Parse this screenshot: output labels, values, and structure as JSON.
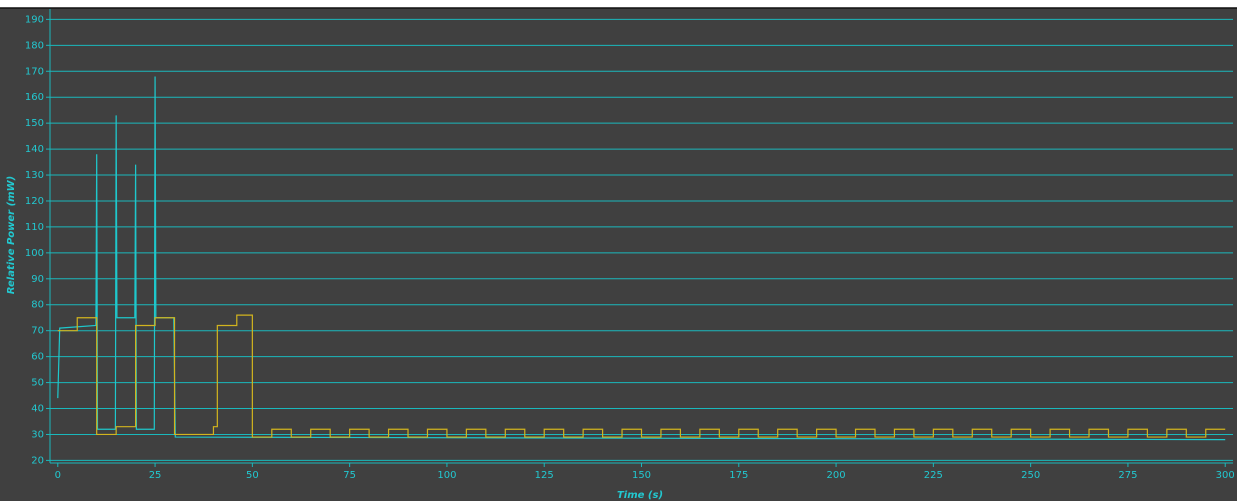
{
  "chart_data": {
    "type": "line",
    "x_label": "Time  (s)",
    "y_label": "Relative Power  (mW)",
    "xlim": [
      -2,
      302
    ],
    "ylim": [
      19,
      194
    ],
    "xticks": [
      0,
      25,
      50,
      75,
      100,
      125,
      150,
      175,
      200,
      225,
      250,
      275,
      300
    ],
    "yticks": [
      20,
      30,
      40,
      50,
      60,
      70,
      80,
      90,
      100,
      110,
      120,
      130,
      140,
      150,
      160,
      170,
      180,
      190
    ],
    "grid": true,
    "series": [
      {
        "color": "#1ec8cc",
        "x": [
          0,
          0.5,
          9.8,
          10,
          10.2,
          14.8,
          15,
          15.2,
          19.8,
          20,
          20.2,
          24.8,
          25,
          25.2,
          29.8,
          30.2,
          300
        ],
        "values": [
          44,
          71,
          72,
          138,
          32,
          32,
          153,
          75,
          75,
          134,
          32,
          32,
          168,
          75,
          75,
          29,
          28
        ]
      },
      {
        "color": "#d2b41e",
        "x": [
          0,
          5,
          5,
          10,
          10,
          15,
          15,
          20,
          20,
          25,
          25,
          30,
          30,
          40,
          40,
          41,
          41,
          46,
          46,
          50,
          50,
          55,
          55,
          60,
          60,
          65,
          65,
          70,
          70,
          75,
          75,
          80,
          80,
          85,
          85,
          90,
          90,
          95,
          95,
          100,
          100,
          105,
          105,
          110,
          110,
          115,
          115,
          120,
          120,
          125,
          125,
          130,
          130,
          135,
          135,
          140,
          140,
          145,
          145,
          150,
          150,
          155,
          155,
          160,
          160,
          165,
          165,
          170,
          170,
          175,
          175,
          180,
          180,
          185,
          185,
          190,
          190,
          195,
          195,
          200,
          200,
          205,
          205,
          210,
          210,
          215,
          215,
          220,
          220,
          225,
          225,
          230,
          230,
          235,
          235,
          240,
          240,
          245,
          245,
          250,
          250,
          255,
          255,
          260,
          260,
          265,
          265,
          270,
          270,
          275,
          275,
          280,
          280,
          285,
          285,
          290,
          290,
          295,
          295,
          300
        ],
        "values": [
          70,
          70,
          75,
          75,
          30,
          30,
          33,
          33,
          72,
          72,
          75,
          75,
          30,
          30,
          33,
          33,
          72,
          72,
          76,
          76,
          29,
          29,
          32,
          32,
          29,
          29,
          32,
          32,
          29,
          29,
          32,
          32,
          29,
          29,
          32,
          32,
          29,
          29,
          32,
          32,
          29,
          29,
          32,
          32,
          29,
          29,
          32,
          32,
          29,
          29,
          32,
          32,
          29,
          29,
          32,
          32,
          29,
          29,
          32,
          32,
          29,
          29,
          32,
          32,
          29,
          29,
          32,
          32,
          29,
          29,
          32,
          32,
          29,
          29,
          32,
          32,
          29,
          29,
          32,
          32,
          29,
          29,
          32,
          32,
          29,
          29,
          32,
          32,
          29,
          29,
          32,
          32,
          29,
          29,
          32,
          32,
          29,
          29,
          32,
          32,
          29,
          29,
          32,
          32,
          29,
          29,
          32,
          32,
          29,
          29,
          32,
          32,
          29,
          29,
          32,
          32,
          29,
          29,
          32,
          32
        ]
      }
    ]
  }
}
